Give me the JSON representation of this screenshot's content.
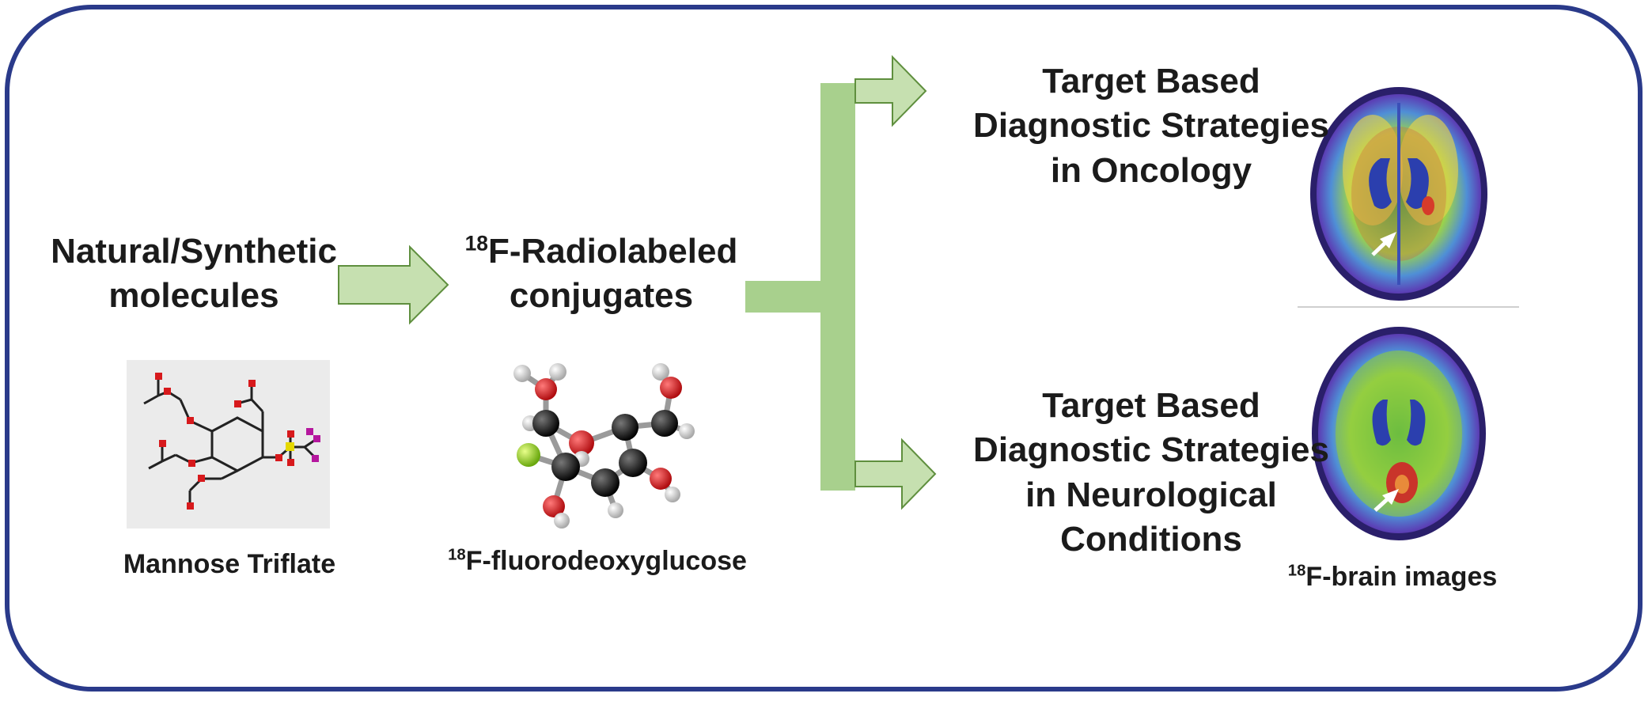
{
  "diagram": {
    "source": {
      "line1": "Natural/Synthetic",
      "line2": "molecules"
    },
    "source_example_caption": "Mannose Triflate",
    "conjugate": {
      "isotope": "18",
      "line1_rest": "F-Radiolabeled",
      "line2": "conjugates"
    },
    "conjugate_example": {
      "isotope": "18",
      "rest": "F-fluorodeoxyglucose"
    },
    "outcome_oncology": {
      "line1": "Target Based",
      "line2": "Diagnostic Strategies",
      "line3": "in Oncology"
    },
    "outcome_neuro": {
      "line1": "Target Based",
      "line2": "Diagnostic Strategies",
      "line3": "in Neurological",
      "line4": "Conditions"
    },
    "brain_caption": {
      "isotope": "18",
      "rest": "F-brain images"
    }
  },
  "colors": {
    "frame": "#2a3a8a",
    "arrow_fill": "#c6e0b0",
    "arrow_stroke": "#5f8f3e",
    "branch_bar": "#a8d08d",
    "atom_carbon": "#111111",
    "atom_oxygen": "#d7191c",
    "atom_hydrogen": "#e6e6e6",
    "atom_fluorine": "#9acd32",
    "triflate_sulfur": "#e5d800",
    "triflate_fluorine": "#b5179e"
  },
  "icons": [
    "mannose-triflate-structure",
    "fdg-ball-and-stick-model",
    "brain-pet-scan-oncology",
    "brain-pet-scan-neurological"
  ]
}
